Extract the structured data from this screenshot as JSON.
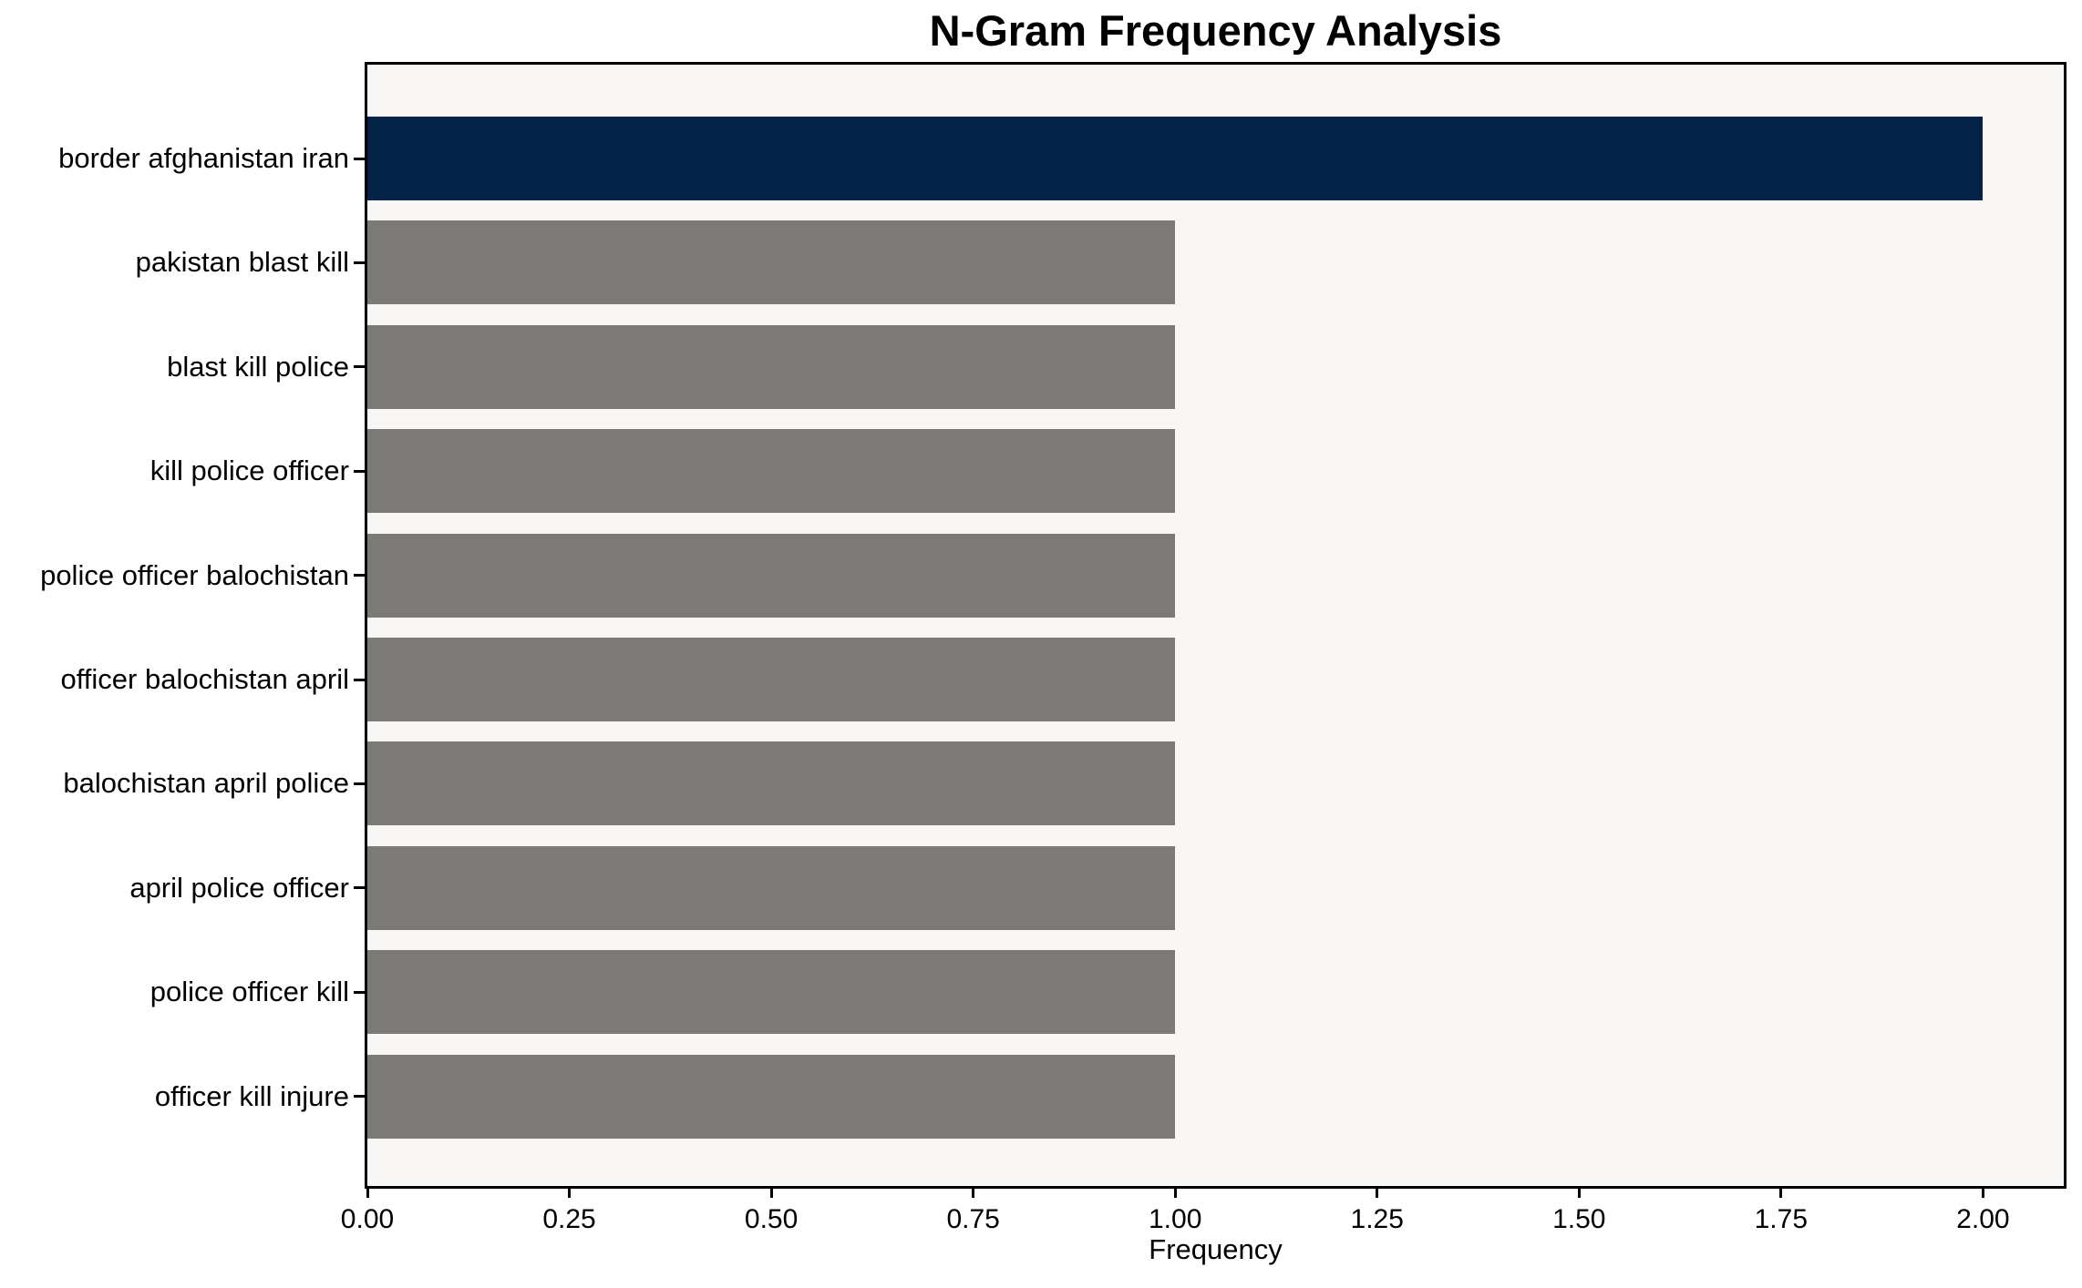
{
  "chart_data": {
    "type": "bar",
    "orientation": "horizontal",
    "title": "N-Gram Frequency Analysis",
    "xlabel": "Frequency",
    "ylabel": "",
    "categories": [
      "border afghanistan iran",
      "pakistan blast kill",
      "blast kill police",
      "kill police officer",
      "police officer balochistan",
      "officer balochistan april",
      "balochistan april police",
      "april police officer",
      "police officer kill",
      "officer kill injure"
    ],
    "values": [
      2,
      1,
      1,
      1,
      1,
      1,
      1,
      1,
      1,
      1
    ],
    "colors": [
      "#032349",
      "#7B7A77",
      "#7B7A77",
      "#7B7A77",
      "#7B7A77",
      "#7B7A77",
      "#7B7A77",
      "#7B7A77",
      "#7B7A77",
      "#7B7A77"
    ],
    "highlight_color": "#032349",
    "default_bar_color": "#7B7A77",
    "xlim": [
      0,
      2.1
    ],
    "xtick_values": [
      0,
      0.25,
      0.5,
      0.75,
      1.0,
      1.25,
      1.5,
      1.75,
      2.0
    ],
    "xtick_labels": [
      "0.00",
      "0.25",
      "0.50",
      "0.75",
      "1.00",
      "1.25",
      "1.50",
      "1.75",
      "2.00"
    ],
    "grid": false,
    "legend": null,
    "plot_background": "#F8F7F6",
    "spine_color": "#000000"
  }
}
